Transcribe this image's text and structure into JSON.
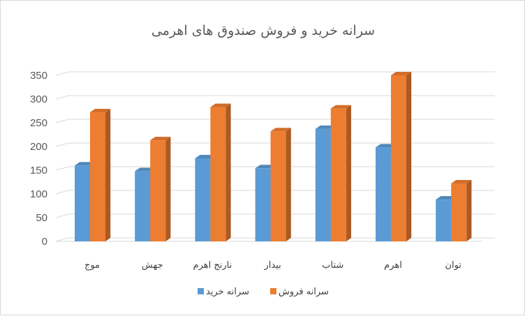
{
  "chart_data": {
    "type": "bar",
    "title": "سرانه خرید و فروش صندوق های اهرمی",
    "categories": [
      "موج",
      "جهش",
      "نارنج اهرم",
      "بیدار",
      "شتاب",
      "اهرم",
      "توان"
    ],
    "series": [
      {
        "name": "سرانه خرید",
        "color": "#5b9bd5",
        "values": [
          160,
          148,
          175,
          154,
          237,
          198,
          88
        ]
      },
      {
        "name": "سرانه فروش",
        "color": "#ed7d31",
        "values": [
          272,
          213,
          283,
          232,
          280,
          350,
          122
        ]
      }
    ],
    "ylim": [
      0,
      350
    ],
    "yticks": [
      "0",
      "50",
      "100",
      "150",
      "200",
      "250",
      "300",
      "350"
    ],
    "grid": true,
    "legend_position": "bottom",
    "style": "3d-clustered-column"
  }
}
